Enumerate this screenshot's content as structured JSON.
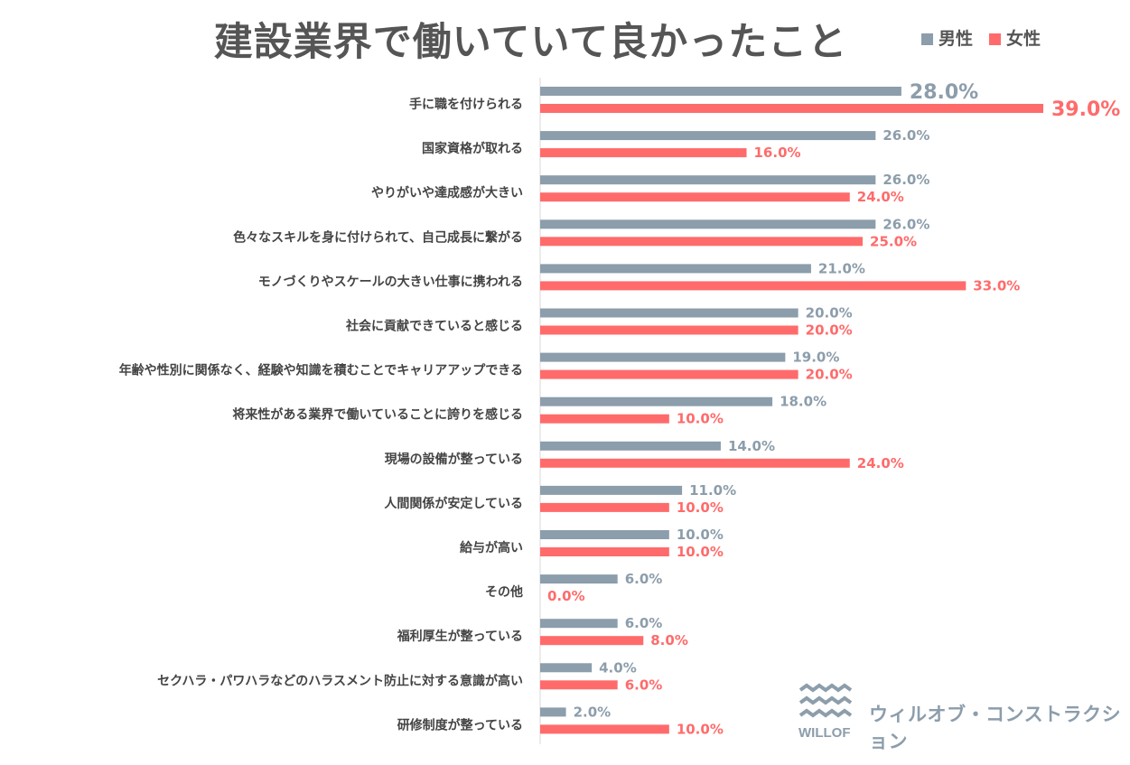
{
  "chart_data": {
    "type": "bar",
    "orientation": "horizontal",
    "title": "建設業界で働いていて良かったこと",
    "categories": [
      "手に職を付けられる",
      "国家資格が取れる",
      "やりがいや達成感が大きい",
      "色々なスキルを身に付けられて、自己成長に繋がる",
      "モノづくりやスケールの大きい仕事に携われる",
      "社会に貢献できていると感じる",
      "年齢や性別に関係なく、経験や知識を積むことでキャリアアップできる",
      "将来性がある業界で働いていることに誇りを感じる",
      "現場の設備が整っている",
      "人間関係が安定している",
      "給与が高い",
      "その他",
      "福利厚生が整っている",
      "セクハラ・パワハラなどのハラスメント防止に対する意識が高い",
      "研修制度が整っている"
    ],
    "series": [
      {
        "name": "男性",
        "color": "#8C9DAB",
        "values": [
          28,
          26,
          26,
          26,
          21,
          20,
          19,
          18,
          14,
          11,
          10,
          6,
          6,
          4,
          2
        ]
      },
      {
        "name": "女性",
        "color": "#FF6B6B",
        "values": [
          39,
          16,
          24,
          25,
          33,
          20,
          20,
          10,
          24,
          10,
          10,
          0,
          8,
          6,
          10
        ]
      }
    ],
    "value_format": "%.1f%",
    "legend_position": "top-right",
    "grid": false,
    "xlim": [
      0,
      40
    ]
  },
  "branding": {
    "logo_mark": "WILLOF",
    "company": "ウィルオブ・コンストラクション"
  }
}
